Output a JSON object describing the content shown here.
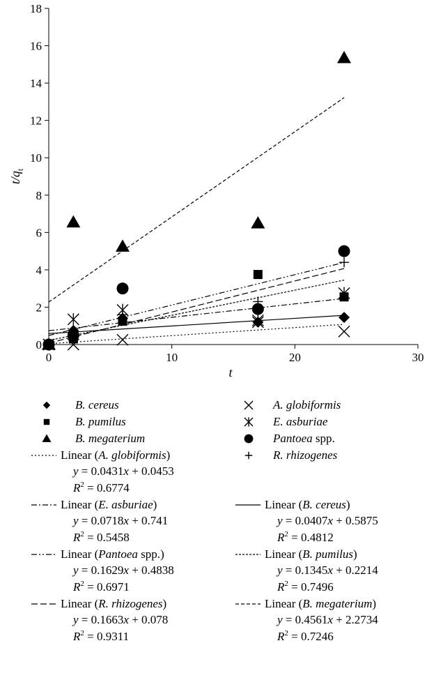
{
  "chart_data": {
    "type": "scatter",
    "xlabel": "t",
    "ylabel": "t/q",
    "ylabel_sub": "t",
    "xlim": [
      0,
      30
    ],
    "ylim": [
      0,
      18
    ],
    "xticks": [
      0,
      10,
      20,
      30
    ],
    "yticks": [
      0,
      2,
      4,
      6,
      8,
      10,
      12,
      14,
      16,
      18
    ],
    "grid": false,
    "legend_position": "bottom",
    "x": [
      0,
      2,
      6,
      17,
      24
    ],
    "series": [
      {
        "name": "B. cereus",
        "marker": "diamond",
        "values": [
          0,
          0.75,
          1.4,
          1.2,
          1.45
        ]
      },
      {
        "name": "A. globiformis",
        "marker": "x",
        "values": [
          0,
          0,
          0.25,
          1.2,
          0.7
        ]
      },
      {
        "name": "B. pumilus",
        "marker": "square",
        "values": [
          0,
          0.3,
          1.25,
          3.75,
          2.55
        ]
      },
      {
        "name": "E. asburiae",
        "marker": "asterisk",
        "values": [
          0,
          1.35,
          1.85,
          1.3,
          2.75
        ]
      },
      {
        "name": "B. megaterium",
        "marker": "triangle",
        "values": [
          0,
          6.55,
          5.25,
          6.5,
          15.35
        ]
      },
      {
        "name": "Pantoea spp.",
        "marker": "circle",
        "values": [
          0,
          0.5,
          3.0,
          1.9,
          5.0
        ]
      },
      {
        "name": "R. rhizogenes",
        "marker": "plus",
        "values": [
          0,
          0.6,
          1.6,
          2.3,
          4.4
        ]
      }
    ],
    "trendlines": [
      {
        "name": "A. globiformis",
        "dash": "2,3",
        "slope": 0.0431,
        "intercept": 0.0453,
        "equation": "y = 0.0431x + 0.0453",
        "r2_label": "R",
        "r2_sup": "2",
        "r2_value": " = 0.6774"
      },
      {
        "name": "E. asburiae",
        "dash": "8,3,2,3",
        "slope": 0.0718,
        "intercept": 0.741,
        "equation": "y = 0.0718x + 0.741",
        "r2_label": "R",
        "r2_sup": "2",
        "r2_value": " = 0.5458"
      },
      {
        "name": "B. cereus",
        "dash": "",
        "slope": 0.0407,
        "intercept": 0.5875,
        "equation": "y = 0.0407x + 0.5875",
        "r2_label": "R",
        "r2_sup": "2",
        "r2_value": " = 0.4812"
      },
      {
        "name": "Pantoea spp.",
        "dash": "8,3,2,3,2,3",
        "slope": 0.1629,
        "intercept": 0.4838,
        "equation": "y = 0.1629x + 0.4838",
        "r2_label": "R",
        "r2_sup": "2",
        "r2_value": " = 0.6971"
      },
      {
        "name": "B. pumilus",
        "dash": "3,2",
        "slope": 0.1345,
        "intercept": 0.2214,
        "equation": "y = 0.1345x + 0.2214",
        "r2_label": "R",
        "r2_sup": "2",
        "r2_value": " = 0.7496"
      },
      {
        "name": "R. rhizogenes",
        "dash": "9,4",
        "slope": 0.1663,
        "intercept": 0.078,
        "equation": "y = 0.1663x + 0.078",
        "r2_label": "R",
        "r2_sup": "2",
        "r2_value": " = 0.9311"
      },
      {
        "name": "B. megaterium",
        "dash": "5,3",
        "slope": 0.4561,
        "intercept": 2.2734,
        "equation": "y = 0.4561x + 2.2734",
        "r2_label": "R",
        "r2_sup": "2",
        "r2_value": " = 0.7246"
      }
    ]
  },
  "legend": {
    "linear_prefix": "Linear (",
    "linear_suffix": ")"
  }
}
